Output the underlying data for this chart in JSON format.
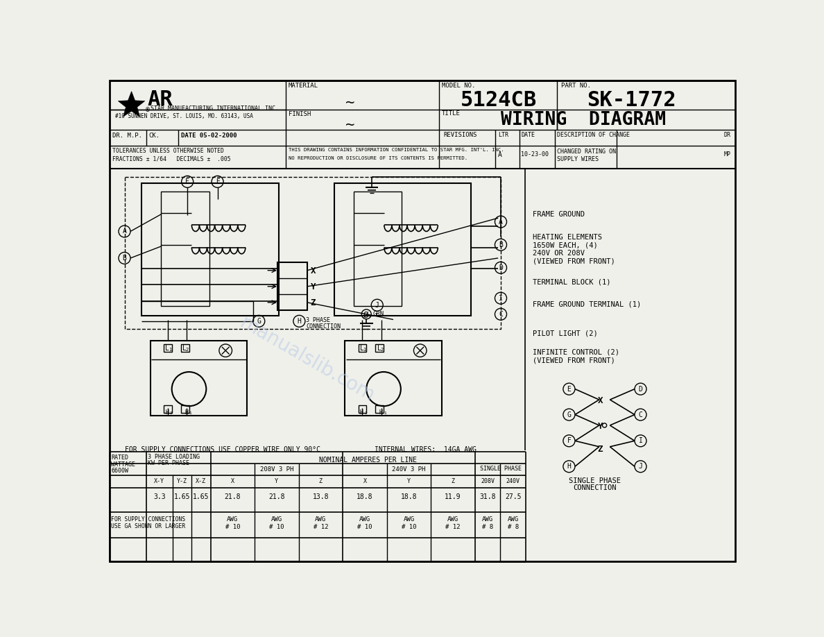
{
  "bg_color": "#f0f0eb",
  "line_color": "#000000",
  "watermark_color": "#b8cce4",
  "tb": {
    "company": "STAR MANUFACTURING INTERNATIONAL INC.",
    "address": "#10 SUNNEN DRIVE, ST. LOUIS, MO. 63143, USA",
    "dr": "DR. M.P.",
    "ck": "CK.",
    "date_val": "05-02-2000",
    "material": "MATERIAL",
    "finish": "FINISH",
    "tilde": "~",
    "model_no": "MODEL NO.",
    "model": "5124CB",
    "part_no": "PART NO.",
    "part": "SK-1772",
    "title_label": "TITLE",
    "title": "WIRING  DIAGRAM",
    "revisions": "REVISIONS",
    "ltr": "LTR",
    "date_col": "DATE",
    "desc_change": "DESCRIPTION OF CHANGE",
    "dr_col": "DR",
    "tolerances": "TOLERANCES UNLESS OTHERWISE NOTED",
    "fractions": "FRACTIONS ± 1/64   DECIMALS ±  .005",
    "confidential": "THIS DRAWING CONTAINS INFORMATION CONFIDENTIAL TO STAR MFG. INT'L. INC.",
    "no_repro": "NO REPRODUCTION OR DISCLOSURE OF ITS CONTENTS IS PERMITTED.",
    "rev_ltr": "A",
    "rev_date": "10-23-00",
    "changed1": "CHANGED RATING ON",
    "changed2": "SUPPLY WIRES",
    "mp": "MP"
  },
  "diag": {
    "frame_ground": "FRAME GROUND",
    "heat1": "HEATING ELEMENTS",
    "heat2": "1650W EACH, (4)",
    "heat3": "240V OR 208V",
    "heat4": "(VIEWED FROM FRONT)",
    "terminal": "TERMINAL BLOCK (1)",
    "fg_terminal": "FRAME GROUND TERMINAL (1)",
    "pilot": "PILOT LIGHT (2)",
    "inf1": "INFINITE CONTROL (2)",
    "inf2": "(VIEWED FROM FRONT)",
    "x_lbl": "X",
    "y_lbl": "Y",
    "z_lbl": "Z",
    "grn": "GRN",
    "phase3": "3 PHASE\nCONNECTION",
    "int_wires": "INTERNAL WIRES:  14GA AWG",
    "supply_copper": "FOR SUPPLY CONNECTIONS USE COPPER WIRE ONLY 90°C",
    "single_phase": "SINGLE PHASE\nCONNECTION"
  },
  "table": {
    "rated": "RATED\nWATTAGE\n6600W",
    "phase_loading": "3 PHASE LOADING\nKW PER PHASE",
    "nominal": "NOMINAL AMPERES PER LINE",
    "ph208": "208V 3 PH",
    "ph240": "240V 3 PH",
    "single": "SINGLE PHASE",
    "kw_headers": [
      "X-Y",
      "Y-Z",
      "X-Z"
    ],
    "amp_headers": [
      "X",
      "Y",
      "Z",
      "X",
      "Y",
      "Z",
      "208V",
      "240V"
    ],
    "kw_vals": [
      "3.3",
      "1.65",
      "1.65"
    ],
    "amp_vals": [
      "21.8",
      "21.8",
      "13.8",
      "18.8",
      "18.8",
      "11.9",
      "31.8",
      "27.5"
    ],
    "awg_label1": "FOR SUPPLY CONNECTIONS",
    "awg_label2": "USE GA SHOWN OR LARGER",
    "awg_vals": [
      "AWG\n# 10",
      "AWG\n# 10",
      "AWG\n# 12",
      "AWG\n# 10",
      "AWG\n# 10",
      "AWG\n# 12",
      "AWG\n# 8",
      "AWG\n# 8"
    ]
  }
}
